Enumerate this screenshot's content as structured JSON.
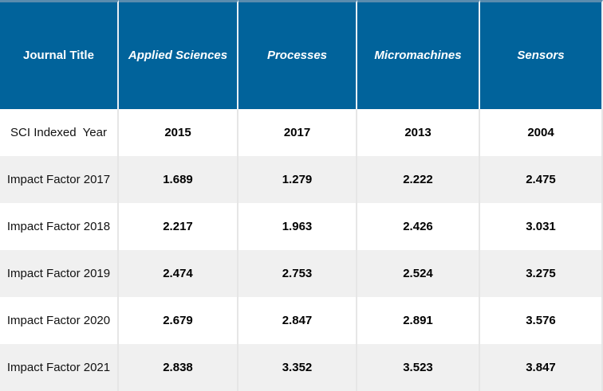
{
  "chart_data": {
    "type": "table",
    "columns": [
      "Journal Title",
      "Applied Sciences",
      "Processes",
      "Micromachines",
      "Sensors"
    ],
    "rows": [
      [
        "SCI Indexed  Year",
        2015,
        2017,
        2013,
        2004
      ],
      [
        "Impact Factor 2017",
        1.689,
        1.279,
        2.222,
        2.475
      ],
      [
        "Impact Factor 2018",
        2.217,
        1.963,
        2.426,
        3.031
      ],
      [
        "Impact Factor 2019",
        2.474,
        2.753,
        2.524,
        3.275
      ],
      [
        "Impact Factor 2020",
        2.679,
        2.847,
        2.891,
        3.576
      ],
      [
        "Impact Factor 2021",
        2.838,
        3.352,
        3.523,
        3.847
      ]
    ],
    "layout": {
      "header_position": "top",
      "zebra_striping": true,
      "grid": true
    }
  },
  "colors": {
    "header_bg": "#01639b",
    "header_text": "#ffffff",
    "top_border": "#5a8cae",
    "stripe_bg": "#f0f0f0",
    "row_bg": "#ffffff",
    "body_divider": "#e6e6e6",
    "header_divider": "#e9f0f5",
    "body_text": "#000000"
  }
}
